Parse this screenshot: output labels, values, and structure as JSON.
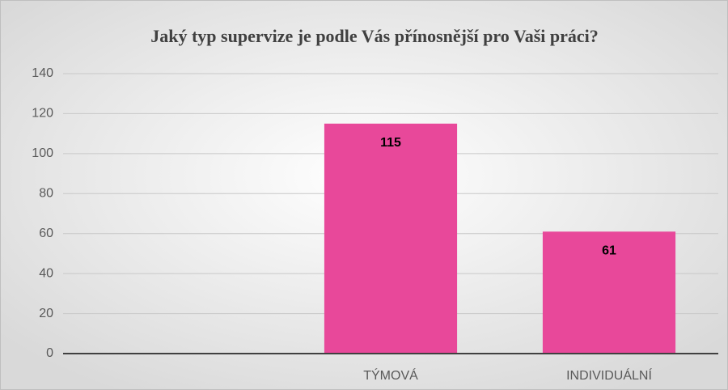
{
  "chart_data": {
    "type": "bar",
    "title": "Jaký typ supervize je podle Vás přínosnější pro Vaši práci?",
    "categories": [
      null,
      "TÝMOVÁ",
      "INDIVIDUÁLNÍ"
    ],
    "values": [
      null,
      115,
      61
    ],
    "color": "#e8489a",
    "ylim": [
      0,
      140
    ],
    "yticks": [
      0,
      20,
      40,
      60,
      80,
      100,
      120,
      140
    ],
    "grid": true
  }
}
